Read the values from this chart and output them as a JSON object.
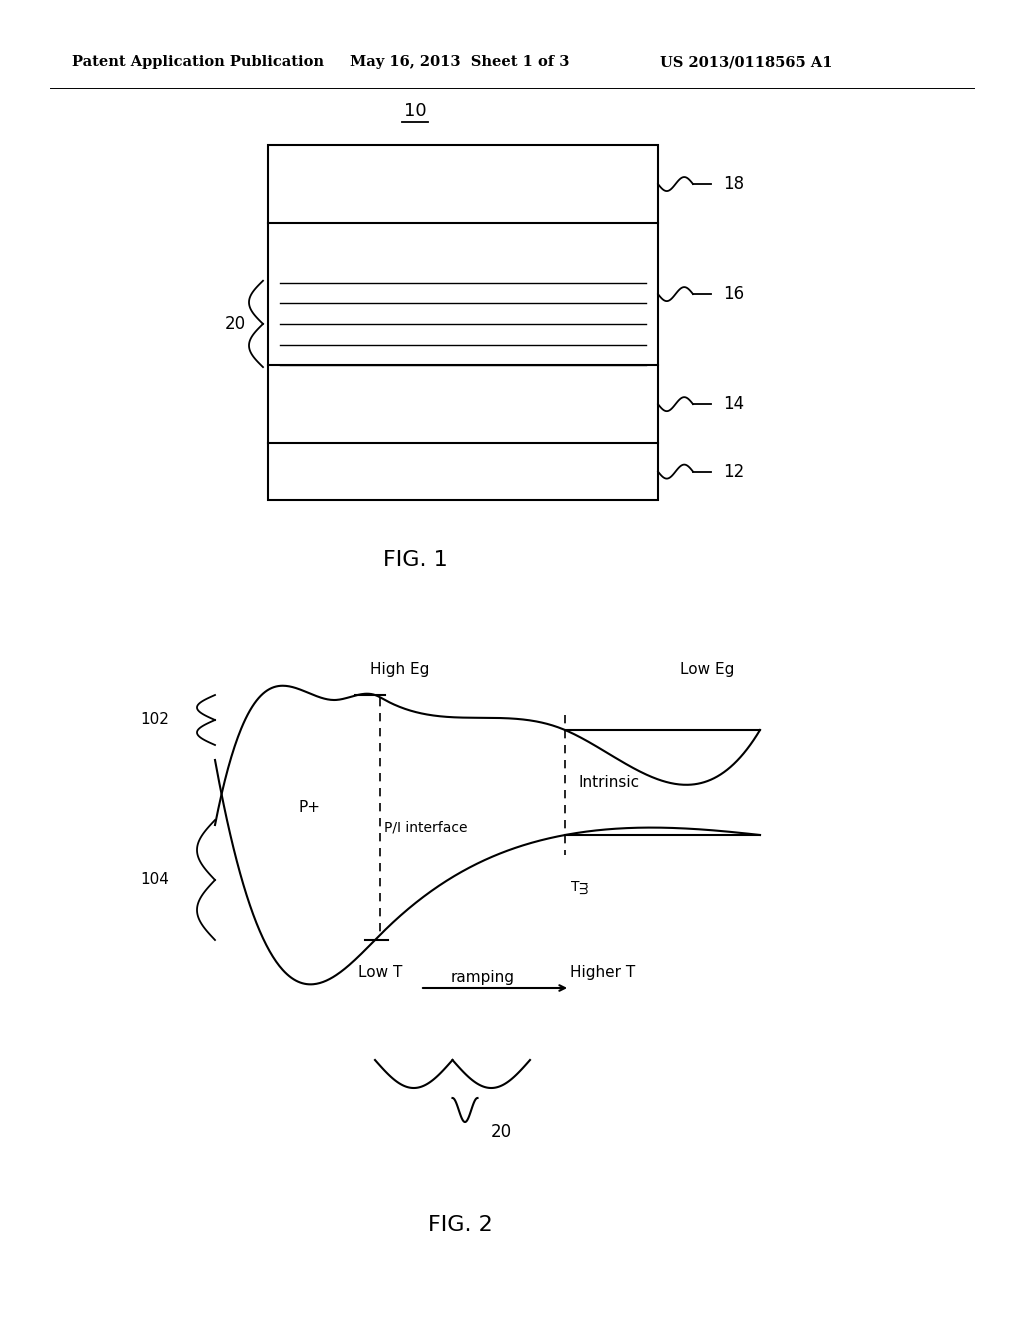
{
  "background_color": "#ffffff",
  "header_left": "Patent Application Publication",
  "header_mid": "May 16, 2013  Sheet 1 of 3",
  "header_right": "US 2013/0118565 A1",
  "fig1_label": "10",
  "fig1_caption": "FIG. 1",
  "fig2_caption": "FIG. 2",
  "label_20_fig1": "20",
  "label_18": "18",
  "label_16": "16",
  "label_14": "14",
  "label_12": "12",
  "label_20_fig2": "20",
  "graph_high_eg_label": "High Eg",
  "graph_low_eg_label": "Low Eg",
  "graph_p_plus_label": "P+",
  "graph_pi_label": "P/I interface",
  "graph_intrinsic_label": "Intrinsic",
  "graph_low_t_label": "Low T",
  "graph_higher_t_label": "Higher T",
  "graph_ramping_label": "ramping",
  "graph_tf_label": "Tᴟ",
  "graph_102_label": "102",
  "graph_104_label": "104"
}
